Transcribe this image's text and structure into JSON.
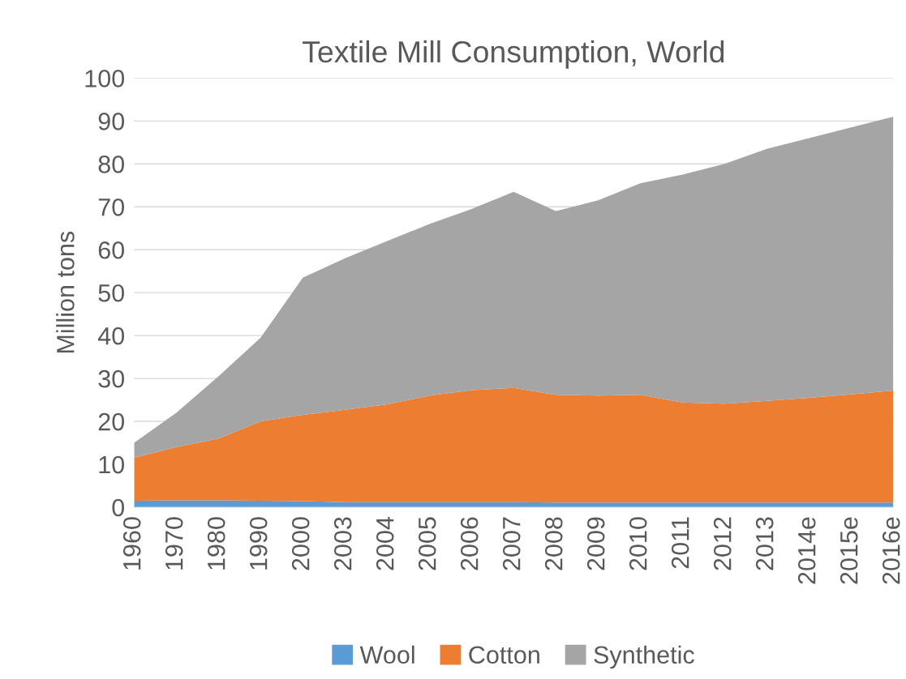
{
  "chart_data": {
    "type": "area",
    "stacked": true,
    "title": "Textile Mill Consumption, World",
    "ylabel": "Million tons",
    "categories": [
      "1960",
      "1970",
      "1980",
      "1990",
      "2000",
      "2003",
      "2004",
      "2005",
      "2006",
      "2007",
      "2008",
      "2009",
      "2010",
      "2011",
      "2012",
      "2013",
      "2014e",
      "2015e",
      "2016e"
    ],
    "series": [
      {
        "name": "Wool",
        "color": "#5b9bd5",
        "values": [
          1.5,
          1.6,
          1.6,
          1.5,
          1.4,
          1.2,
          1.2,
          1.2,
          1.2,
          1.2,
          1.1,
          1.1,
          1.1,
          1.1,
          1.1,
          1.1,
          1.1,
          1.1,
          1.1
        ]
      },
      {
        "name": "Cotton",
        "color": "#ed7d31",
        "values": [
          10.0,
          12.4,
          14.4,
          18.5,
          20.1,
          21.5,
          22.8,
          24.8,
          26.1,
          26.6,
          25.1,
          24.9,
          25.1,
          23.3,
          23.0,
          23.7,
          24.4,
          25.2,
          26.1
        ]
      },
      {
        "name": "Synthetic",
        "color": "#a5a5a5",
        "values": [
          3.5,
          8.0,
          14.5,
          19.5,
          32.0,
          35.3,
          38.0,
          40.0,
          42.2,
          45.7,
          42.8,
          45.5,
          49.3,
          53.1,
          55.9,
          58.7,
          60.5,
          62.2,
          63.8
        ]
      }
    ],
    "ylim": [
      0,
      100
    ],
    "yticks": [
      0,
      10,
      20,
      30,
      40,
      50,
      60,
      70,
      80,
      90,
      100
    ],
    "grid": "y",
    "legend": "bottom"
  }
}
